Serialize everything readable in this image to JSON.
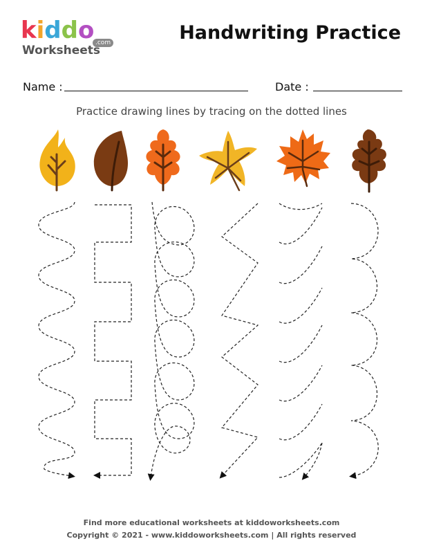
{
  "logo": {
    "letters": [
      {
        "char": "k",
        "color": "#e8364f"
      },
      {
        "char": "i",
        "color": "#f2a52a"
      },
      {
        "char": "d",
        "color": "#3aa7d8"
      },
      {
        "char": "d",
        "color": "#8bc34a"
      },
      {
        "char": "o",
        "color": "#b34fc2"
      }
    ],
    "domain_suffix": ".com",
    "subtitle": "Worksheets"
  },
  "title": "Handwriting Practice",
  "fields": {
    "name_label": "Name :",
    "date_label": "Date :"
  },
  "instruction": "Practice drawing lines by tracing on the dotted lines",
  "leaves": [
    {
      "icon": "yellow-leaf-icon",
      "color": "#f2b21a",
      "vein": "#6b3e1a"
    },
    {
      "icon": "brown-leaf-icon",
      "color": "#7a3b13",
      "vein": "#3d1c08"
    },
    {
      "icon": "orange-oak-leaf-icon",
      "color": "#ef6a1c",
      "vein": "#5a2a0c"
    },
    {
      "icon": "yellow-star-leaf-icon",
      "color": "#f1b526",
      "vein": "#6b3e1a"
    },
    {
      "icon": "orange-maple-leaf-icon",
      "color": "#ee6a16",
      "vein": "#5a2a0c"
    },
    {
      "icon": "brown-oak-leaf-icon",
      "color": "#7a3a13",
      "vein": "#3d1c08"
    }
  ],
  "tracing_patterns": [
    {
      "name": "wave-line"
    },
    {
      "name": "square-wave-line"
    },
    {
      "name": "loop-line"
    },
    {
      "name": "zigzag-line"
    },
    {
      "name": "arc-line"
    },
    {
      "name": "bump-line"
    }
  ],
  "footer": {
    "line1": "Find more educational worksheets at kiddoworksheets.com",
    "line2": "Copyright © 2021 - www.kiddoworksheets.com  |  All rights reserved"
  }
}
